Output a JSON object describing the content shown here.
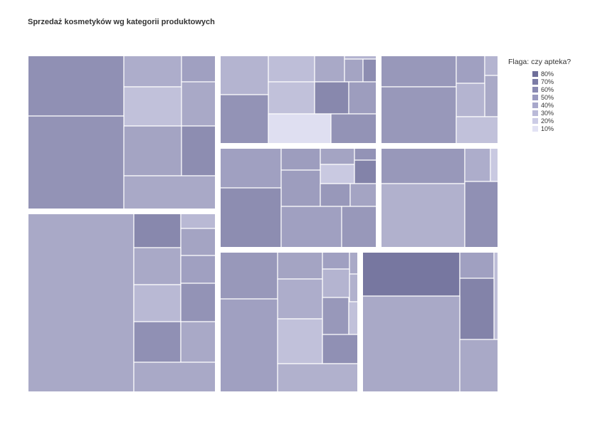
{
  "chart_title": "Sprzedaż kosmetyków wg kategorii produktowych",
  "chart_data": {
    "type": "treemap",
    "title": "Sprzedaż kosmetyków wg kategorii produktowych",
    "color_legend": {
      "title": "Flaga: czy apteka?",
      "levels": [
        {
          "label": "80%",
          "color": "#6f6f9a"
        },
        {
          "label": "70%",
          "color": "#7c7ca6"
        },
        {
          "label": "60%",
          "color": "#8a8ab2"
        },
        {
          "label": "50%",
          "color": "#9999bf"
        },
        {
          "label": "40%",
          "color": "#a8a8cb"
        },
        {
          "label": "30%",
          "color": "#babad8"
        },
        {
          "label": "20%",
          "color": "#ccccE6"
        },
        {
          "label": "10%",
          "color": "#e2e2f4"
        }
      ]
    },
    "groups": [
      {
        "tiles": [
          0.6,
          0.42,
          0.5,
          0.3,
          0.45,
          0.58,
          0.48,
          0.62
        ]
      },
      {
        "tiles": [
          0.38,
          0.32,
          0.45,
          0.38,
          0.48,
          0.62,
          0.3,
          0.65,
          0.52,
          0.58,
          0.12,
          0.58,
          0.52,
          0.2
        ]
      },
      {
        "tiles": [
          0.55,
          0.5,
          0.38,
          0.45,
          0.38,
          0.55,
          0.3
        ]
      },
      {
        "tiles": [
          0.5,
          0.52,
          0.48,
          0.58,
          0.25,
          0.68,
          0.52,
          0.55,
          0.48,
          0.62,
          0.5,
          0.55,
          0.22
        ]
      },
      {
        "tiles": [
          0.55,
          0.42,
          0.25,
          0.4,
          0.6
        ]
      },
      {
        "tiles": [
          0.45,
          0.65,
          0.35,
          0.48,
          0.45,
          0.5,
          0.35,
          0.58,
          0.6
        ]
      },
      {
        "tiles": [
          0.55,
          0.48,
          0.5,
          0.45,
          0.38,
          0.4,
          0.42,
          0.55,
          0.3,
          0.5,
          0.3,
          0.6,
          0.4,
          0.38
        ]
      },
      {
        "tiles": [
          0.75,
          0.5,
          0.32,
          0.68,
          0.45
        ]
      }
    ]
  }
}
